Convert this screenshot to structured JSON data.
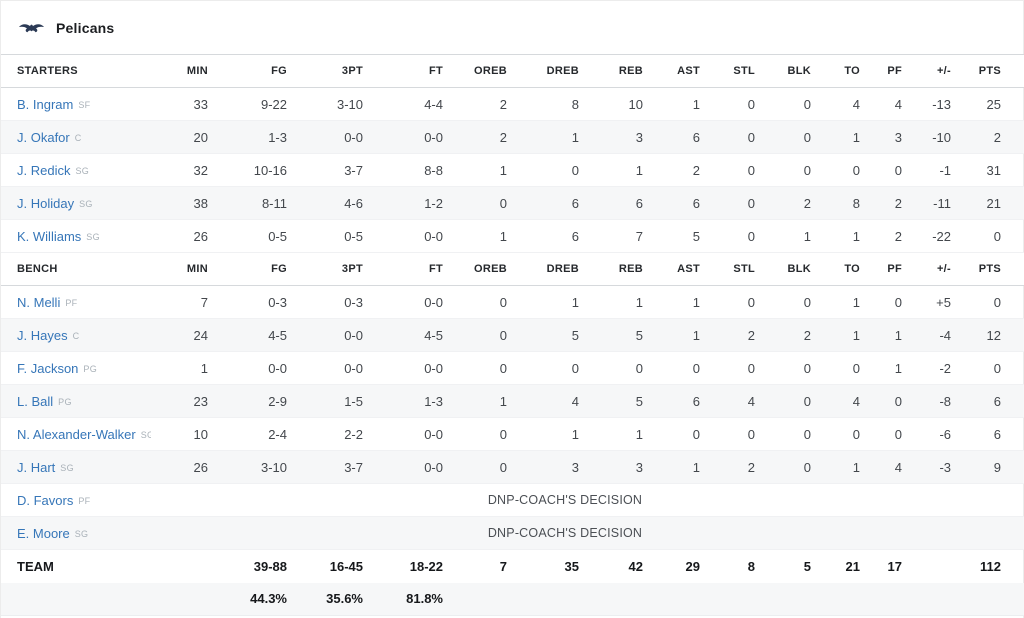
{
  "team": {
    "name": "Pelicans"
  },
  "columns": [
    "MIN",
    "FG",
    "3PT",
    "FT",
    "OREB",
    "DREB",
    "REB",
    "AST",
    "STL",
    "BLK",
    "TO",
    "PF",
    "+/-",
    "PTS"
  ],
  "sections": [
    {
      "label": "STARTERS",
      "players": [
        {
          "name": "B. Ingram",
          "pos": "SF",
          "dnp": false,
          "stats": [
            "33",
            "9-22",
            "3-10",
            "4-4",
            "2",
            "8",
            "10",
            "1",
            "0",
            "0",
            "4",
            "4",
            "-13",
            "25"
          ]
        },
        {
          "name": "J. Okafor",
          "pos": "C",
          "dnp": false,
          "stats": [
            "20",
            "1-3",
            "0-0",
            "0-0",
            "2",
            "1",
            "3",
            "6",
            "0",
            "0",
            "1",
            "3",
            "-10",
            "2"
          ]
        },
        {
          "name": "J. Redick",
          "pos": "SG",
          "dnp": false,
          "stats": [
            "32",
            "10-16",
            "3-7",
            "8-8",
            "1",
            "0",
            "1",
            "2",
            "0",
            "0",
            "0",
            "0",
            "-1",
            "31"
          ]
        },
        {
          "name": "J. Holiday",
          "pos": "SG",
          "dnp": false,
          "stats": [
            "38",
            "8-11",
            "4-6",
            "1-2",
            "0",
            "6",
            "6",
            "6",
            "0",
            "2",
            "8",
            "2",
            "-11",
            "21"
          ]
        },
        {
          "name": "K. Williams",
          "pos": "SG",
          "dnp": false,
          "stats": [
            "26",
            "0-5",
            "0-5",
            "0-0",
            "1",
            "6",
            "7",
            "5",
            "0",
            "1",
            "1",
            "2",
            "-22",
            "0"
          ]
        }
      ]
    },
    {
      "label": "BENCH",
      "players": [
        {
          "name": "N. Melli",
          "pos": "PF",
          "dnp": false,
          "stats": [
            "7",
            "0-3",
            "0-3",
            "0-0",
            "0",
            "1",
            "1",
            "1",
            "0",
            "0",
            "1",
            "0",
            "+5",
            "0"
          ]
        },
        {
          "name": "J. Hayes",
          "pos": "C",
          "dnp": false,
          "stats": [
            "24",
            "4-5",
            "0-0",
            "4-5",
            "0",
            "5",
            "5",
            "1",
            "2",
            "2",
            "1",
            "1",
            "-4",
            "12"
          ]
        },
        {
          "name": "F. Jackson",
          "pos": "PG",
          "dnp": false,
          "stats": [
            "1",
            "0-0",
            "0-0",
            "0-0",
            "0",
            "0",
            "0",
            "0",
            "0",
            "0",
            "0",
            "1",
            "-2",
            "0"
          ]
        },
        {
          "name": "L. Ball",
          "pos": "PG",
          "dnp": false,
          "stats": [
            "23",
            "2-9",
            "1-5",
            "1-3",
            "1",
            "4",
            "5",
            "6",
            "4",
            "0",
            "4",
            "0",
            "-8",
            "6"
          ]
        },
        {
          "name": "N. Alexander-Walker",
          "pos": "SG",
          "dnp": false,
          "stats": [
            "10",
            "2-4",
            "2-2",
            "0-0",
            "0",
            "1",
            "1",
            "0",
            "0",
            "0",
            "0",
            "0",
            "-6",
            "6"
          ]
        },
        {
          "name": "J. Hart",
          "pos": "SG",
          "dnp": false,
          "stats": [
            "26",
            "3-10",
            "3-7",
            "0-0",
            "0",
            "3",
            "3",
            "1",
            "2",
            "0",
            "1",
            "4",
            "-3",
            "9"
          ]
        },
        {
          "name": "D. Favors",
          "pos": "PF",
          "dnp": true
        },
        {
          "name": "E. Moore",
          "pos": "SG",
          "dnp": true
        }
      ]
    }
  ],
  "dnp_text": "DNP-COACH'S DECISION",
  "team_totals": {
    "label": "TEAM",
    "stats": [
      "",
      "39-88",
      "16-45",
      "18-22",
      "7",
      "35",
      "42",
      "29",
      "8",
      "5",
      "21",
      "17",
      "",
      "112"
    ]
  },
  "shooting_percentages": {
    "stats": [
      "",
      "44.3%",
      "35.6%",
      "81.8%",
      "",
      "",
      "",
      "",
      "",
      "",
      "",
      "",
      "",
      ""
    ]
  },
  "colors": {
    "link_blue": "#3676b8",
    "row_stripe": "#f6f7f8",
    "logo_navy": "#2b3a55",
    "border_strong": "#d6d9dc"
  }
}
